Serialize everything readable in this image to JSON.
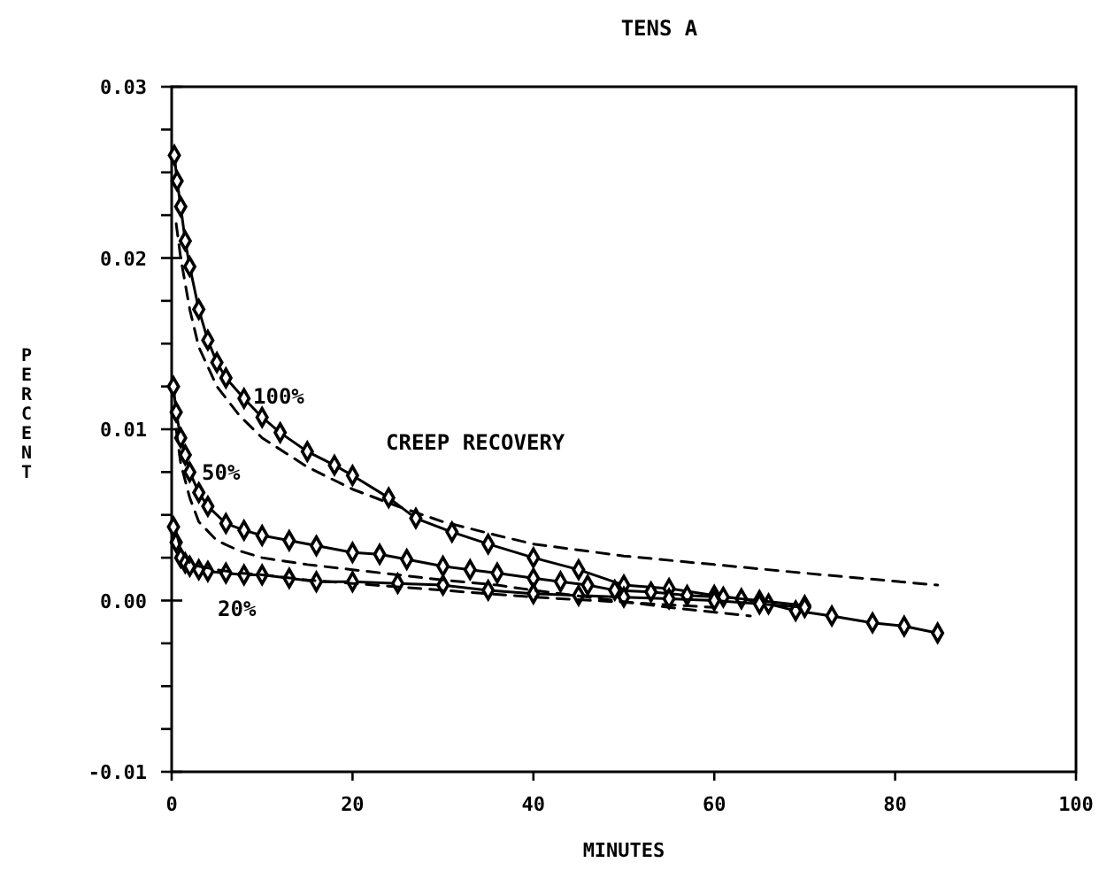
{
  "chart_data": {
    "type": "line",
    "title": "TENS A",
    "xlabel": "MINUTES",
    "ylabel": "PERCENT",
    "xlim": [
      0,
      100
    ],
    "xticks": [
      0,
      20,
      40,
      60,
      80,
      100
    ],
    "ylim": [
      -0.01,
      0.03
    ],
    "yticks": [
      {
        "value": -0.01,
        "label": "-0.01"
      },
      {
        "value": -0.0075,
        "label": null
      },
      {
        "value": -0.005,
        "label": null
      },
      {
        "value": -0.0025,
        "label": null
      },
      {
        "value": 0,
        "label": "0.00"
      },
      {
        "value": 0.0025,
        "label": null
      },
      {
        "value": 0.005,
        "label": null
      },
      {
        "value": 0.0075,
        "label": null
      },
      {
        "value": 0.01,
        "label": "0.01"
      },
      {
        "value": 0.0125,
        "label": null
      },
      {
        "value": 0.015,
        "label": null
      },
      {
        "value": 0.0175,
        "label": null
      },
      {
        "value": 0.02,
        "label": "0.02"
      },
      {
        "value": 0.0225,
        "label": null
      },
      {
        "value": 0.025,
        "label": null
      },
      {
        "value": 0.0275,
        "label": null
      },
      {
        "value": 0.03,
        "label": "0.03"
      }
    ],
    "grid": false,
    "series": [
      {
        "color": "#000000",
        "marker": "diamond",
        "line_style": "solid",
        "x": [
          0.3,
          0.6,
          1,
          1.5,
          2,
          3,
          4,
          5,
          6,
          8,
          10,
          12,
          15,
          18,
          20,
          24,
          27,
          31,
          35,
          40,
          45,
          50,
          55,
          60,
          63,
          66,
          69,
          73,
          77.5,
          81,
          84.7
        ],
        "values": [
          0.026,
          0.0245,
          0.023,
          0.021,
          0.0195,
          0.017,
          0.0152,
          0.0139,
          0.013,
          0.0118,
          0.0107,
          0.0098,
          0.0087,
          0.0079,
          0.0073,
          0.006,
          0.0048,
          0.004,
          0.0033,
          0.0025,
          0.0018,
          0.0009,
          0.0007,
          0.0003,
          0.0001,
          -0.0002,
          -0.0006,
          -0.0009,
          -0.0013,
          -0.0015,
          -0.0019
        ]
      },
      {
        "color": "#000000",
        "marker": "diamond",
        "line_style": "solid",
        "x": [
          0.2,
          0.5,
          1,
          1.5,
          2,
          3,
          4,
          6,
          8,
          10,
          13,
          16,
          20,
          23,
          26,
          30,
          33,
          36,
          40,
          43,
          46,
          49,
          53,
          57,
          61,
          65,
          70
        ],
        "values": [
          0.0125,
          0.011,
          0.0095,
          0.0085,
          0.0075,
          0.0063,
          0.0055,
          0.0045,
          0.0041,
          0.0038,
          0.0035,
          0.0032,
          0.0028,
          0.0027,
          0.0024,
          0.002,
          0.0018,
          0.0016,
          0.0013,
          0.0011,
          0.0009,
          0.0006,
          0.0005,
          0.0003,
          0.0002,
          0,
          -0.0003
        ]
      },
      {
        "color": "#000000",
        "marker": "diamond",
        "line_style": "solid",
        "x": [
          0.2,
          0.5,
          1,
          1.5,
          2,
          3,
          4,
          6,
          8,
          10,
          13,
          16,
          20,
          25,
          30,
          35,
          40,
          45,
          50,
          55,
          60,
          65,
          70
        ],
        "values": [
          0.0043,
          0.0034,
          0.0025,
          0.0022,
          0.002,
          0.0018,
          0.0017,
          0.0016,
          0.0015,
          0.0015,
          0.0013,
          0.0011,
          0.0011,
          0.001,
          0.0009,
          0.0006,
          0.0004,
          0.0003,
          0.0002,
          0.0001,
          0,
          -0.0002,
          -0.0004
        ]
      },
      {
        "color": "#000000",
        "marker": "none",
        "line_style": "dashed",
        "x": [
          0.5,
          1,
          2,
          3,
          5,
          7.5,
          10,
          15,
          20,
          25,
          30,
          36,
          40,
          50,
          60,
          70,
          84.7
        ],
        "values": [
          0.022,
          0.02,
          0.017,
          0.0148,
          0.0125,
          0.0108,
          0.0095,
          0.0078,
          0.0065,
          0.0055,
          0.0046,
          0.0038,
          0.0033,
          0.0026,
          0.0021,
          0.0016,
          0.0009
        ]
      },
      {
        "color": "#000000",
        "marker": "none",
        "line_style": "dashed",
        "x": [
          0.5,
          1,
          2,
          3,
          5,
          7.5,
          10,
          15,
          20,
          25,
          30,
          36,
          40,
          46,
          55,
          64
        ],
        "values": [
          0.01,
          0.008,
          0.006,
          0.0046,
          0.0035,
          0.0029,
          0.0025,
          0.0021,
          0.0018,
          0.0015,
          0.0012,
          0.0009,
          0.0006,
          0.0002,
          -0.0004,
          -0.0009
        ]
      },
      {
        "color": "#000000",
        "marker": "none",
        "line_style": "dashed",
        "x": [
          0.5,
          1,
          2,
          3,
          5,
          7.5,
          10,
          15,
          20,
          30,
          40,
          50,
          60
        ],
        "values": [
          0.004,
          0.003,
          0.0022,
          0.002,
          0.0018,
          0.0016,
          0.0015,
          0.0012,
          0.001,
          0.0006,
          0.0002,
          -0.0001,
          -0.0004
        ]
      }
    ],
    "annotations": [
      "100%",
      "50%",
      "20%",
      "CREEP RECOVERY"
    ]
  }
}
